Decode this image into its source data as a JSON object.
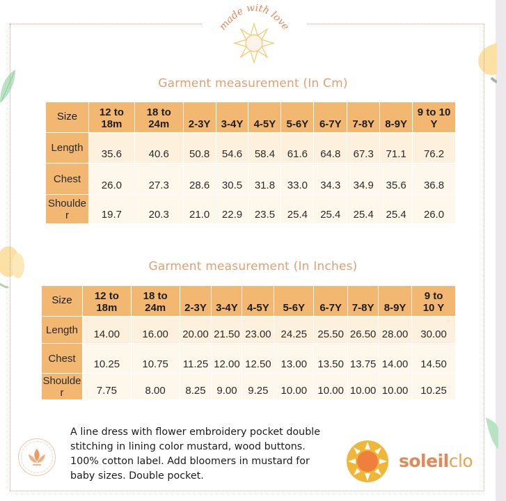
{
  "header": {
    "logo_text": "made with love"
  },
  "cm_table": {
    "title": "Garment measurement  (In Cm)",
    "columns": [
      "Size",
      "12 to 18m",
      "18 to 24m",
      "2-3Y",
      "3-4Y",
      "4-5Y",
      "5-6Y",
      "6-7Y",
      "7-8Y",
      "8-9Y",
      "9 to 10 Y"
    ],
    "header_lines": [
      [
        "Size"
      ],
      [
        "12 to",
        "18m"
      ],
      [
        "18 to",
        "24m"
      ],
      [
        "2-3Y"
      ],
      [
        "3-4Y"
      ],
      [
        "4-5Y"
      ],
      [
        "5-6Y"
      ],
      [
        "6-7Y"
      ],
      [
        "7-8Y"
      ],
      [
        "8-9Y"
      ],
      [
        "9 to 10",
        "Y"
      ]
    ],
    "rows": [
      {
        "label": "Length",
        "values": [
          "35.6",
          "40.6",
          "50.8",
          "54.6",
          "58.4",
          "61.6",
          "64.8",
          "67.3",
          "71.1",
          "76.2"
        ]
      },
      {
        "label": "Chest",
        "values": [
          "26.0",
          "27.3",
          "28.6",
          "30.5",
          "31.8",
          "33.0",
          "34.3",
          "34.9",
          "35.6",
          "36.8"
        ]
      },
      {
        "label": "Shoulde r",
        "label_lines": [
          "Shoulde",
          "r"
        ],
        "values": [
          "19.7",
          "20.3",
          "21.0",
          "22.9",
          "23.5",
          "25.4",
          "25.4",
          "25.4",
          "25.4",
          "26.0"
        ]
      }
    ]
  },
  "inch_table": {
    "title": "Garment measurement  (In Inches)",
    "columns": [
      "Size",
      "12 to 18m",
      "18 to 24m",
      "2-3Y",
      "3-4Y",
      "4-5Y",
      "5-6Y",
      "6-7Y",
      "7-8Y",
      "8-9Y",
      "9 to 10 Y"
    ],
    "header_lines": [
      [
        "Size"
      ],
      [
        "12 to",
        "18m"
      ],
      [
        "18 to",
        "24m"
      ],
      [
        "2-3Y"
      ],
      [
        "3-4Y"
      ],
      [
        "4-5Y"
      ],
      [
        "5-6Y"
      ],
      [
        "6-7Y"
      ],
      [
        "7-8Y"
      ],
      [
        "8-9Y"
      ],
      [
        "9 to",
        "10 Y"
      ]
    ],
    "rows": [
      {
        "label": "Length",
        "values": [
          "14.00",
          "16.00",
          "20.00",
          "21.50",
          "23.00",
          "24.25",
          "25.50",
          "26.50",
          "28.00",
          "30.00"
        ]
      },
      {
        "label": "Chest",
        "values": [
          "10.25",
          "10.75",
          "11.25",
          "12.00",
          "12.50",
          "13.00",
          "13.50",
          "13.75",
          "14.00",
          "14.50"
        ]
      },
      {
        "label": "Shoulde r",
        "label_lines": [
          "Shoulde",
          "r"
        ],
        "values": [
          "7.75",
          "8.00",
          "8.25",
          "9.00",
          "9.25",
          "10.00",
          "10.00",
          "10.00",
          "10.00",
          "10.25"
        ]
      }
    ]
  },
  "description": "A line dress with flower embroidery pocket double stitching in lining color mustard, wood buttons. 100% cotton label.  Add bloomers in mustard for baby sizes. Double pocket.",
  "brand": {
    "part1": "soleil",
    "part2": "clo"
  },
  "colors": {
    "header_bg": "#f2b871",
    "row_light": "#fef7ec",
    "title": "#e0a072",
    "brand_orange": "#e08a57",
    "brand_mustard": "#e6a64a"
  }
}
